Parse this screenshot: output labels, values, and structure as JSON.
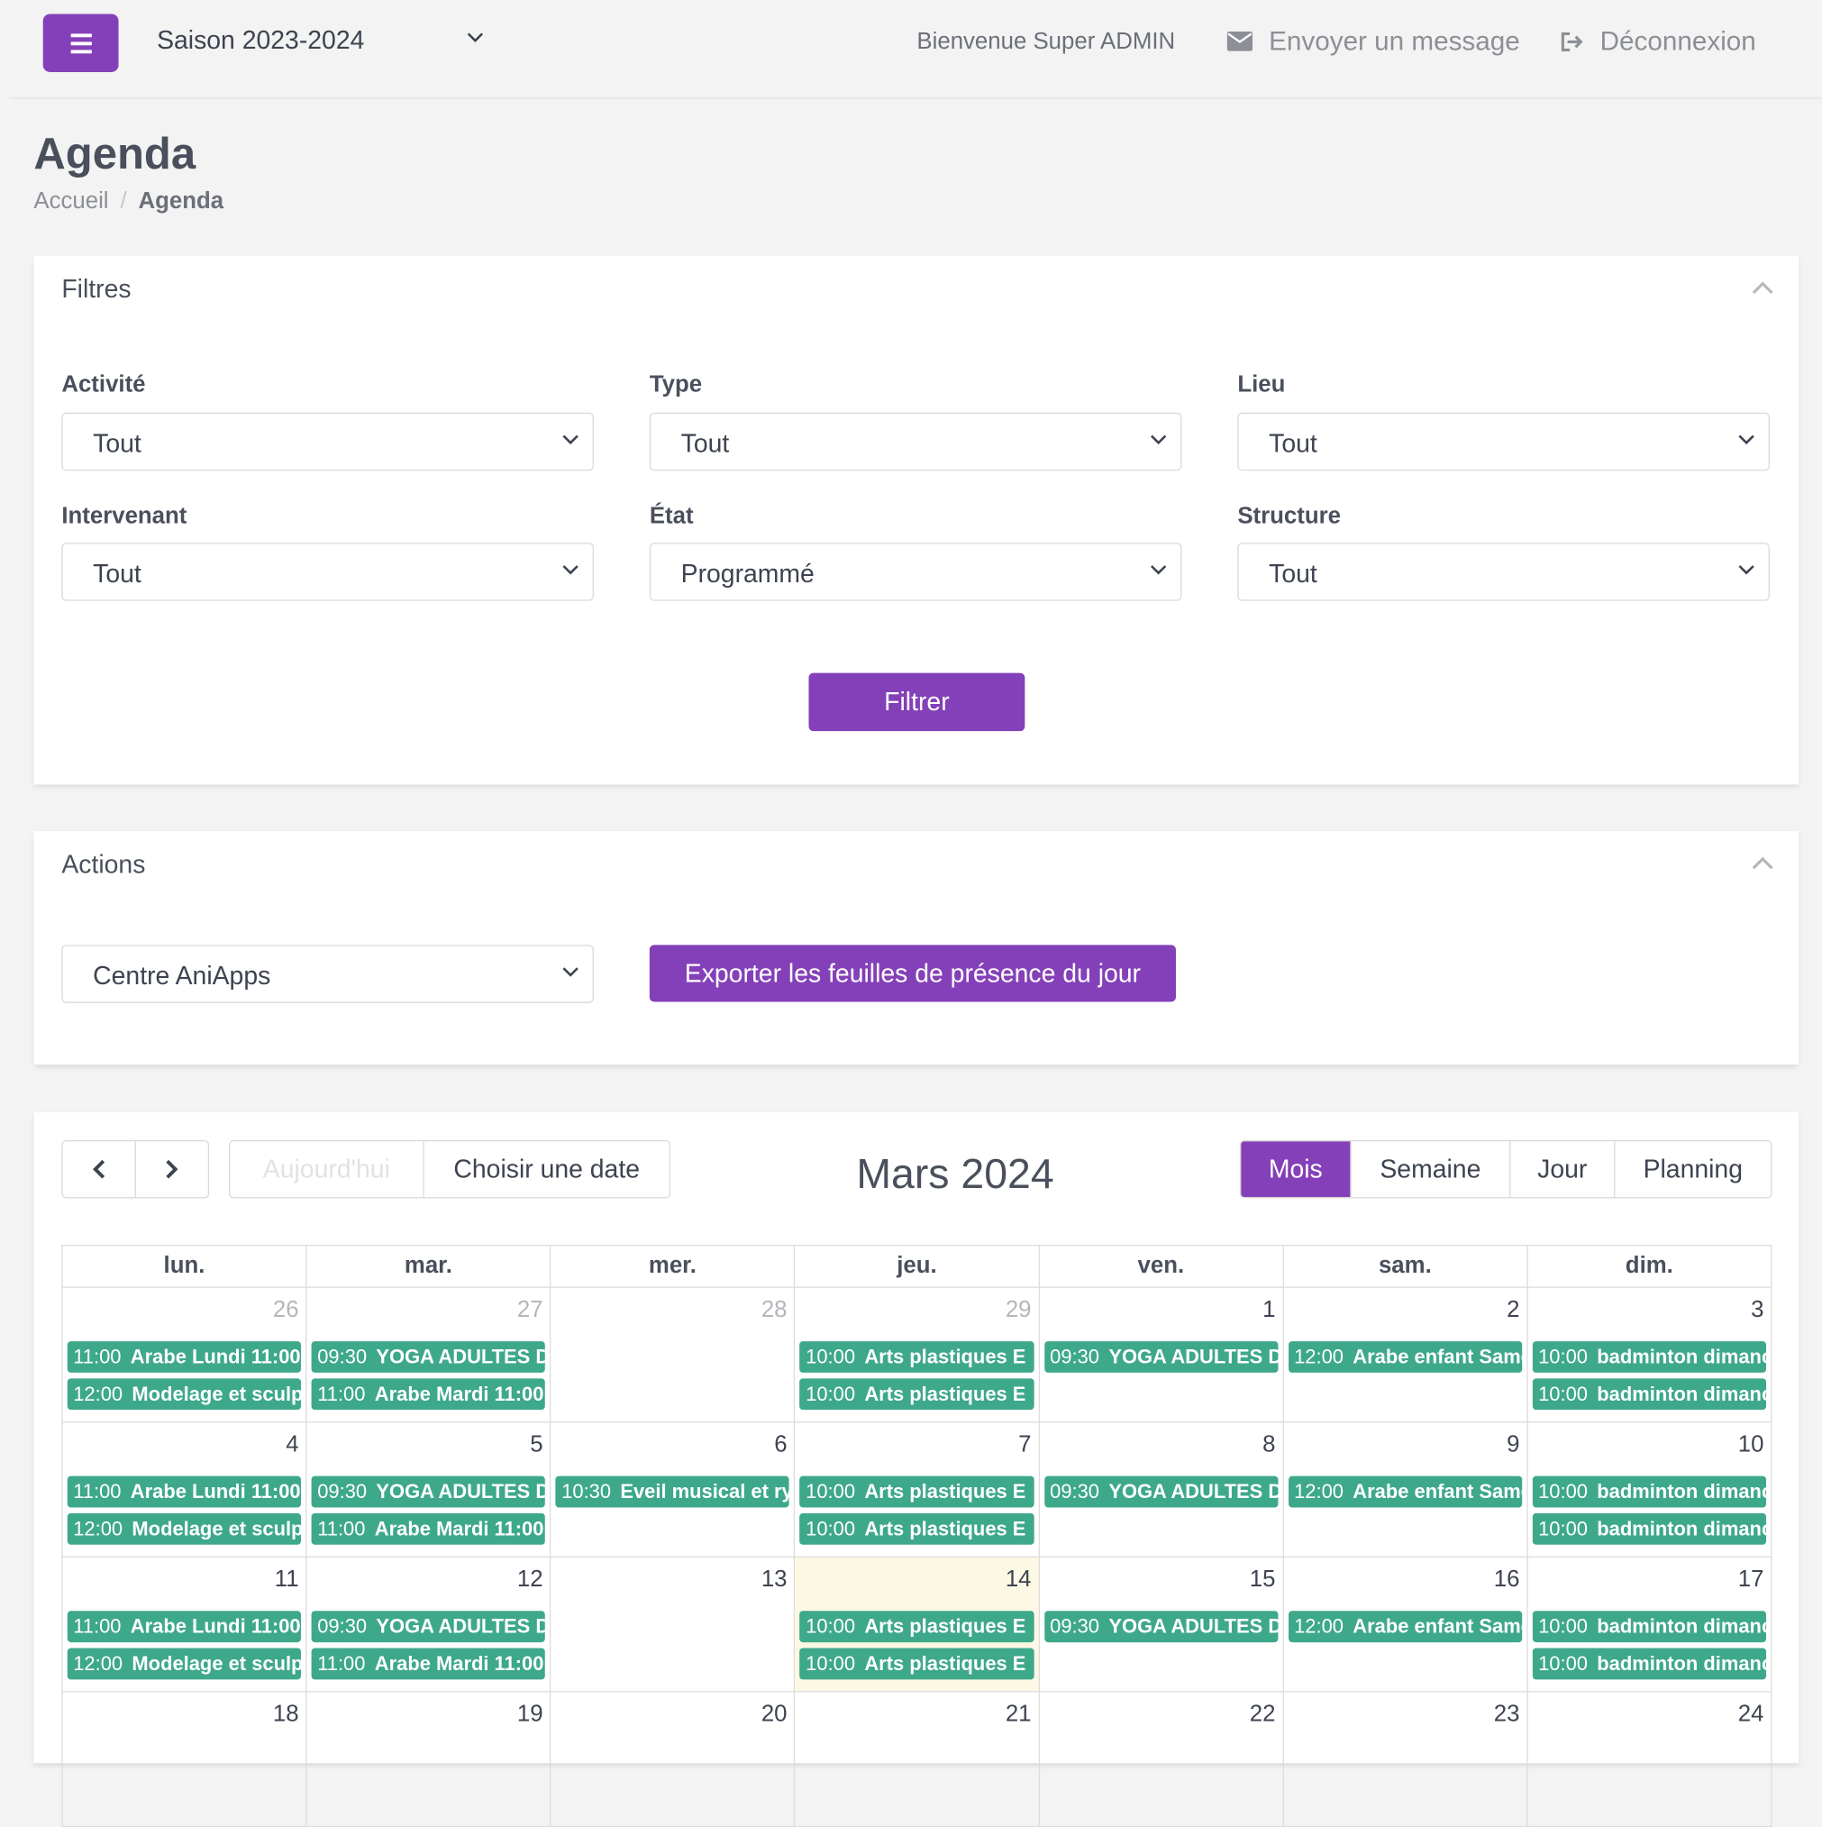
{
  "header": {
    "season": "Saison 2023-2024",
    "welcome": "Bienvenue Super ADMIN",
    "send_message": "Envoyer un message",
    "logout": "Déconnexion"
  },
  "page": {
    "title": "Agenda",
    "breadcrumb_home": "Accueil",
    "breadcrumb_current": "Agenda"
  },
  "filters": {
    "title": "Filtres",
    "activite": {
      "label": "Activité",
      "value": "Tout"
    },
    "type": {
      "label": "Type",
      "value": "Tout"
    },
    "lieu": {
      "label": "Lieu",
      "value": "Tout"
    },
    "intervenant": {
      "label": "Intervenant",
      "value": "Tout"
    },
    "etat": {
      "label": "État",
      "value": "Programmé"
    },
    "structure": {
      "label": "Structure",
      "value": "Tout"
    },
    "submit": "Filtrer"
  },
  "actions": {
    "title": "Actions",
    "centre": "Centre AniApps",
    "export": "Exporter les feuilles de présence du jour"
  },
  "calendar": {
    "today": "Aujourd'hui",
    "pick_date": "Choisir une date",
    "title": "Mars 2024",
    "views": [
      "Mois",
      "Semaine",
      "Jour",
      "Planning"
    ],
    "active_view": "Mois",
    "weekdays": [
      "lun.",
      "mar.",
      "mer.",
      "jeu.",
      "ven.",
      "sam.",
      "dim."
    ],
    "weeks": [
      [
        {
          "num": "26",
          "other": true,
          "events": [
            {
              "time": "11:00",
              "name": "Arabe Lundi 11:00"
            },
            {
              "time": "12:00",
              "name": "Modelage et sculpture"
            }
          ]
        },
        {
          "num": "27",
          "other": true,
          "events": [
            {
              "time": "09:30",
              "name": "YOGA ADULTES D"
            },
            {
              "time": "11:00",
              "name": "Arabe Mardi 11:00"
            }
          ]
        },
        {
          "num": "28",
          "other": true,
          "events": []
        },
        {
          "num": "29",
          "other": true,
          "events": [
            {
              "time": "10:00",
              "name": "Arts plastiques E"
            },
            {
              "time": "10:00",
              "name": "Arts plastiques E"
            }
          ]
        },
        {
          "num": "1",
          "events": [
            {
              "time": "09:30",
              "name": "YOGA ADULTES D"
            }
          ]
        },
        {
          "num": "2",
          "events": [
            {
              "time": "12:00",
              "name": "Arabe enfant Samedi"
            }
          ]
        },
        {
          "num": "3",
          "events": [
            {
              "time": "10:00",
              "name": "badminton dimanche"
            },
            {
              "time": "10:00",
              "name": "badminton dimanche"
            }
          ]
        }
      ],
      [
        {
          "num": "4",
          "events": [
            {
              "time": "11:00",
              "name": "Arabe Lundi 11:00"
            },
            {
              "time": "12:00",
              "name": "Modelage et sculpture"
            }
          ]
        },
        {
          "num": "5",
          "events": [
            {
              "time": "09:30",
              "name": "YOGA ADULTES D"
            },
            {
              "time": "11:00",
              "name": "Arabe Mardi 11:00"
            }
          ]
        },
        {
          "num": "6",
          "events": [
            {
              "time": "10:30",
              "name": "Eveil musical et rythmique"
            }
          ]
        },
        {
          "num": "7",
          "events": [
            {
              "time": "10:00",
              "name": "Arts plastiques E"
            },
            {
              "time": "10:00",
              "name": "Arts plastiques E"
            }
          ]
        },
        {
          "num": "8",
          "events": [
            {
              "time": "09:30",
              "name": "YOGA ADULTES D"
            }
          ]
        },
        {
          "num": "9",
          "events": [
            {
              "time": "12:00",
              "name": "Arabe enfant Samedi"
            }
          ]
        },
        {
          "num": "10",
          "events": [
            {
              "time": "10:00",
              "name": "badminton dimanche"
            },
            {
              "time": "10:00",
              "name": "badminton dimanche"
            }
          ]
        }
      ],
      [
        {
          "num": "11",
          "events": [
            {
              "time": "11:00",
              "name": "Arabe Lundi 11:00"
            },
            {
              "time": "12:00",
              "name": "Modelage et sculpture"
            }
          ]
        },
        {
          "num": "12",
          "events": [
            {
              "time": "09:30",
              "name": "YOGA ADULTES D"
            },
            {
              "time": "11:00",
              "name": "Arabe Mardi 11:00"
            }
          ]
        },
        {
          "num": "13",
          "events": []
        },
        {
          "num": "14",
          "today": true,
          "events": [
            {
              "time": "10:00",
              "name": "Arts plastiques E"
            },
            {
              "time": "10:00",
              "name": "Arts plastiques E"
            }
          ]
        },
        {
          "num": "15",
          "events": [
            {
              "time": "09:30",
              "name": "YOGA ADULTES D"
            }
          ]
        },
        {
          "num": "16",
          "events": [
            {
              "time": "12:00",
              "name": "Arabe enfant Samedi"
            }
          ]
        },
        {
          "num": "17",
          "events": [
            {
              "time": "10:00",
              "name": "badminton dimanche"
            },
            {
              "time": "10:00",
              "name": "badminton dimanche"
            }
          ]
        }
      ],
      [
        {
          "num": "18",
          "events": []
        },
        {
          "num": "19",
          "events": []
        },
        {
          "num": "20",
          "events": []
        },
        {
          "num": "21",
          "events": []
        },
        {
          "num": "22",
          "events": []
        },
        {
          "num": "23",
          "events": []
        },
        {
          "num": "24",
          "events": []
        }
      ]
    ]
  },
  "colors": {
    "accent": "#8440b8",
    "event": "#3ea88b",
    "today_bg": "#fcf8e3"
  }
}
